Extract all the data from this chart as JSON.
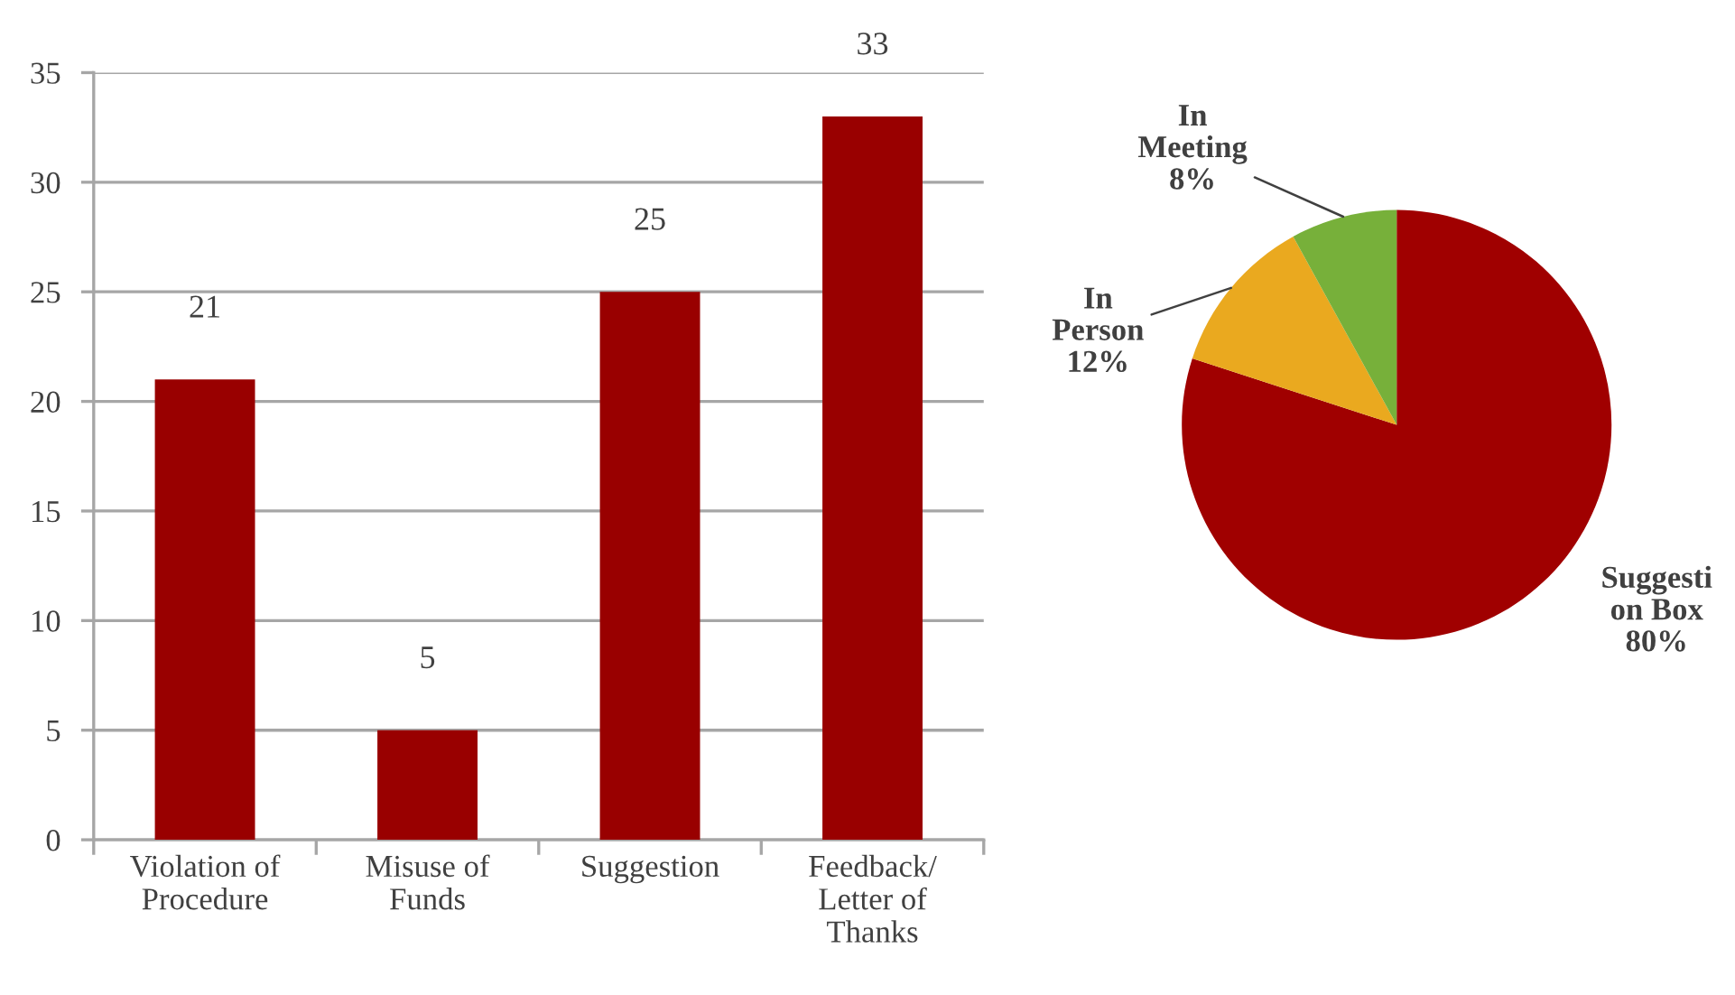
{
  "chart_data": [
    {
      "type": "bar",
      "categories": [
        "Violation of\nProcedure",
        "Misuse of\nFunds",
        "Suggestion",
        "Feedback/\nLetter of\nThanks"
      ],
      "values": [
        21,
        5,
        25,
        33
      ],
      "color": "#990000",
      "ylim": [
        0,
        35
      ],
      "yticks": [
        0,
        5,
        10,
        15,
        20,
        25,
        30,
        35
      ],
      "grid": "y",
      "data_labels": true
    },
    {
      "type": "pie",
      "categories": [
        "Suggesti\non Box",
        "In\nPerson",
        "In\nMeeting"
      ],
      "values": [
        80,
        12,
        8
      ],
      "colors": [
        "#a00000",
        "#eaa91f",
        "#77b03a"
      ],
      "value_labels": [
        "80%",
        "12%",
        "8%"
      ]
    }
  ]
}
